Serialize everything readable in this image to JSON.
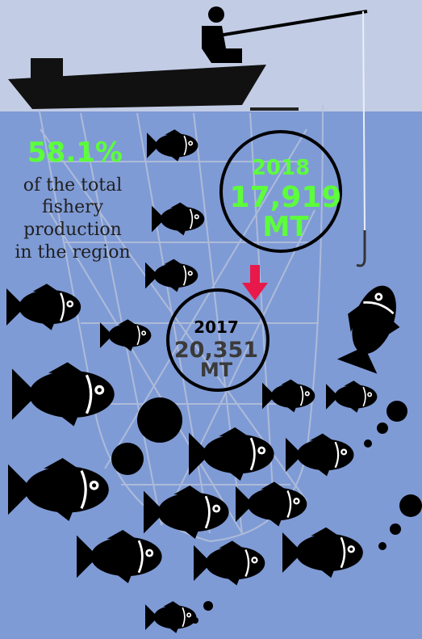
{
  "stat": {
    "percent": "58.1%",
    "caption": [
      "of the total",
      "fishery",
      "production",
      "in the region"
    ]
  },
  "current": {
    "year": "2018",
    "amount": "17,919",
    "unit": "MT"
  },
  "previous": {
    "year": "2017",
    "amount": "20,351",
    "unit": "MT"
  }
}
